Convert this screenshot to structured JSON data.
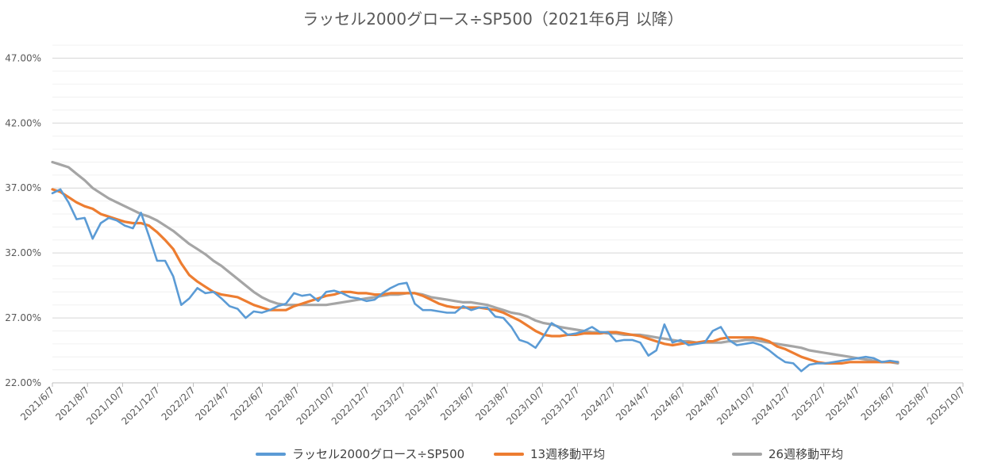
{
  "chart_data": {
    "type": "line",
    "title": "ラッセル2000グロース÷SP500（2021年6月 以降）",
    "y_unit": "percent",
    "ylim": [
      22,
      48
    ],
    "yticks": [
      "22.00%",
      "27.00%",
      "32.00%",
      "37.00%",
      "42.00%",
      "47.00%"
    ],
    "ytick_values": [
      22,
      27,
      32,
      37,
      42,
      47
    ],
    "minor_grid_step": 1,
    "grid": true,
    "legend_position": "bottom",
    "x_range": [
      "2021-06-07",
      "2025-10-07"
    ],
    "xticks": [
      "2021/6/7",
      "2021/8/7",
      "2021/10/7",
      "2021/12/7",
      "2022/2/7",
      "2022/4/7",
      "2022/6/7",
      "2022/8/7",
      "2022/10/7",
      "2022/12/7",
      "2023/2/7",
      "2023/4/7",
      "2023/6/7",
      "2023/8/7",
      "2023/10/7",
      "2023/12/7",
      "2024/2/7",
      "2024/4/7",
      "2024/6/7",
      "2024/8/7",
      "2024/10/7",
      "2024/12/7",
      "2025/2/7",
      "2025/4/7",
      "2025/6/7",
      "2025/8/7",
      "2025/10/7"
    ],
    "series": [
      {
        "name": "ラッセル2000グロース÷SP500",
        "color": "#5B9BD5",
        "x": [
          "2021-06-07",
          "2021-06-21",
          "2021-07-05",
          "2021-07-19",
          "2021-08-02",
          "2021-08-16",
          "2021-08-30",
          "2021-09-13",
          "2021-09-27",
          "2021-10-11",
          "2021-10-25",
          "2021-11-08",
          "2021-11-22",
          "2021-12-06",
          "2021-12-20",
          "2022-01-03",
          "2022-01-17",
          "2022-01-31",
          "2022-02-14",
          "2022-02-28",
          "2022-03-14",
          "2022-03-28",
          "2022-04-11",
          "2022-04-25",
          "2022-05-09",
          "2022-05-23",
          "2022-06-06",
          "2022-06-20",
          "2022-07-04",
          "2022-07-18",
          "2022-08-01",
          "2022-08-15",
          "2022-08-29",
          "2022-09-12",
          "2022-09-26",
          "2022-10-10",
          "2022-10-24",
          "2022-11-07",
          "2022-11-21",
          "2022-12-05",
          "2022-12-19",
          "2023-01-02",
          "2023-01-16",
          "2023-01-30",
          "2023-02-13",
          "2023-02-27",
          "2023-03-13",
          "2023-03-27",
          "2023-04-10",
          "2023-04-24",
          "2023-05-08",
          "2023-05-22",
          "2023-06-05",
          "2023-06-19",
          "2023-07-03",
          "2023-07-17",
          "2023-07-31",
          "2023-08-14",
          "2023-08-28",
          "2023-09-11",
          "2023-09-25",
          "2023-10-09",
          "2023-10-23",
          "2023-11-06",
          "2023-11-20",
          "2023-12-04",
          "2023-12-18",
          "2024-01-01",
          "2024-01-15",
          "2024-01-29",
          "2024-02-12",
          "2024-02-26",
          "2024-03-11",
          "2024-03-25",
          "2024-04-08",
          "2024-04-22",
          "2024-05-06",
          "2024-05-20",
          "2024-06-03",
          "2024-06-17",
          "2024-07-01",
          "2024-07-15",
          "2024-07-29",
          "2024-08-12",
          "2024-08-26",
          "2024-09-09",
          "2024-09-23",
          "2024-10-07",
          "2024-10-21",
          "2024-11-04",
          "2024-11-18",
          "2024-12-02",
          "2024-12-16",
          "2024-12-30",
          "2025-01-13",
          "2025-01-27",
          "2025-02-10",
          "2025-02-24",
          "2025-03-10",
          "2025-03-24",
          "2025-04-07",
          "2025-04-21",
          "2025-05-05",
          "2025-05-19",
          "2025-06-02",
          "2025-06-16"
        ],
        "values": [
          36.6,
          36.9,
          35.9,
          34.6,
          34.7,
          33.1,
          34.3,
          34.7,
          34.5,
          34.1,
          33.9,
          35.1,
          33.3,
          31.4,
          31.4,
          30.2,
          28.0,
          28.5,
          29.3,
          28.9,
          29.0,
          28.5,
          27.9,
          27.7,
          27.0,
          27.5,
          27.4,
          27.6,
          27.9,
          28.1,
          28.9,
          28.7,
          28.8,
          28.3,
          29.0,
          29.1,
          28.9,
          28.6,
          28.5,
          28.3,
          28.4,
          28.9,
          29.3,
          29.6,
          29.7,
          28.1,
          27.6,
          27.6,
          27.5,
          27.4,
          27.4,
          27.9,
          27.6,
          27.8,
          27.8,
          27.1,
          27.0,
          26.3,
          25.3,
          25.1,
          24.7,
          25.6,
          26.6,
          26.2,
          25.7,
          25.8,
          26.0,
          26.3,
          25.9,
          25.9,
          25.2,
          25.3,
          25.3,
          25.1,
          24.1,
          24.5,
          26.5,
          25.1,
          25.3,
          24.9,
          25.0,
          25.1,
          26.0,
          26.3,
          25.3,
          24.9,
          25.0,
          25.1,
          24.9,
          24.5,
          24.0,
          23.6,
          23.5,
          22.9,
          23.4,
          23.5,
          23.5,
          23.6,
          23.7,
          23.8,
          23.9,
          24.0,
          23.9,
          23.6,
          23.7,
          23.6
        ],
        "values_note": ""
      },
      {
        "name": "13週移動平均",
        "color": "#ED7D31",
        "x": [
          "2021-06-07",
          "2021-06-21",
          "2021-07-05",
          "2021-07-19",
          "2021-08-02",
          "2021-08-16",
          "2021-08-30",
          "2021-09-13",
          "2021-09-27",
          "2021-10-11",
          "2021-10-25",
          "2021-11-08",
          "2021-11-22",
          "2021-12-06",
          "2021-12-20",
          "2022-01-03",
          "2022-01-17",
          "2022-01-31",
          "2022-02-14",
          "2022-02-28",
          "2022-03-14",
          "2022-03-28",
          "2022-04-11",
          "2022-04-25",
          "2022-05-09",
          "2022-05-23",
          "2022-06-06",
          "2022-06-20",
          "2022-07-04",
          "2022-07-18",
          "2022-08-01",
          "2022-08-15",
          "2022-08-29",
          "2022-09-12",
          "2022-09-26",
          "2022-10-10",
          "2022-10-24",
          "2022-11-07",
          "2022-11-21",
          "2022-12-05",
          "2022-12-19",
          "2023-01-02",
          "2023-01-16",
          "2023-01-30",
          "2023-02-13",
          "2023-02-27",
          "2023-03-13",
          "2023-03-27",
          "2023-04-10",
          "2023-04-24",
          "2023-05-08",
          "2023-05-22",
          "2023-06-05",
          "2023-06-19",
          "2023-07-03",
          "2023-07-17",
          "2023-07-31",
          "2023-08-14",
          "2023-08-28",
          "2023-09-11",
          "2023-09-25",
          "2023-10-09",
          "2023-10-23",
          "2023-11-06",
          "2023-11-20",
          "2023-12-04",
          "2023-12-18",
          "2024-01-01",
          "2024-01-15",
          "2024-01-29",
          "2024-02-12",
          "2024-02-26",
          "2024-03-11",
          "2024-03-25",
          "2024-04-08",
          "2024-04-22",
          "2024-05-06",
          "2024-05-20",
          "2024-06-03",
          "2024-06-17",
          "2024-07-01",
          "2024-07-15",
          "2024-07-29",
          "2024-08-12",
          "2024-08-26",
          "2024-09-09",
          "2024-09-23",
          "2024-10-07",
          "2024-10-21",
          "2024-11-04",
          "2024-11-18",
          "2024-12-02",
          "2024-12-16",
          "2024-12-30",
          "2025-01-13",
          "2025-01-27",
          "2025-02-10",
          "2025-02-24",
          "2025-03-10",
          "2025-03-24",
          "2025-04-07",
          "2025-04-21",
          "2025-05-05",
          "2025-05-19",
          "2025-06-02",
          "2025-06-16"
        ],
        "values": [
          36.9,
          36.7,
          36.3,
          35.9,
          35.6,
          35.4,
          35.0,
          34.8,
          34.6,
          34.4,
          34.3,
          34.3,
          34.1,
          33.6,
          33.0,
          32.3,
          31.2,
          30.3,
          29.8,
          29.4,
          29.0,
          28.8,
          28.7,
          28.6,
          28.3,
          28.0,
          27.8,
          27.6,
          27.6,
          27.6,
          27.9,
          28.1,
          28.3,
          28.5,
          28.7,
          28.8,
          29.0,
          29.0,
          28.9,
          28.9,
          28.8,
          28.8,
          28.9,
          28.9,
          28.9,
          28.9,
          28.7,
          28.4,
          28.1,
          27.9,
          27.8,
          27.8,
          27.8,
          27.8,
          27.7,
          27.6,
          27.4,
          27.1,
          26.8,
          26.4,
          26.0,
          25.7,
          25.6,
          25.6,
          25.7,
          25.7,
          25.8,
          25.8,
          25.8,
          25.9,
          25.9,
          25.8,
          25.7,
          25.6,
          25.4,
          25.2,
          25.0,
          24.9,
          25.0,
          25.1,
          25.1,
          25.2,
          25.2,
          25.4,
          25.5,
          25.5,
          25.5,
          25.5,
          25.4,
          25.2,
          24.8,
          24.6,
          24.3,
          24.0,
          23.8,
          23.6,
          23.5,
          23.5,
          23.5,
          23.6,
          23.6,
          23.6,
          23.6,
          23.6,
          23.6,
          23.6
        ],
        "values_note": ""
      },
      {
        "name": "26週移動平均",
        "color": "#A5A5A5",
        "x": [
          "2021-06-07",
          "2021-06-21",
          "2021-07-05",
          "2021-07-19",
          "2021-08-02",
          "2021-08-16",
          "2021-08-30",
          "2021-09-13",
          "2021-09-27",
          "2021-10-11",
          "2021-10-25",
          "2021-11-08",
          "2021-11-22",
          "2021-12-06",
          "2021-12-20",
          "2022-01-03",
          "2022-01-17",
          "2022-01-31",
          "2022-02-14",
          "2022-02-28",
          "2022-03-14",
          "2022-03-28",
          "2022-04-11",
          "2022-04-25",
          "2022-05-09",
          "2022-05-23",
          "2022-06-06",
          "2022-06-20",
          "2022-07-04",
          "2022-07-18",
          "2022-08-01",
          "2022-08-15",
          "2022-08-29",
          "2022-09-12",
          "2022-09-26",
          "2022-10-10",
          "2022-10-24",
          "2022-11-07",
          "2022-11-21",
          "2022-12-05",
          "2022-12-19",
          "2023-01-02",
          "2023-01-16",
          "2023-01-30",
          "2023-02-13",
          "2023-02-27",
          "2023-03-13",
          "2023-03-27",
          "2023-04-10",
          "2023-04-24",
          "2023-05-08",
          "2023-05-22",
          "2023-06-05",
          "2023-06-19",
          "2023-07-03",
          "2023-07-17",
          "2023-07-31",
          "2023-08-14",
          "2023-08-28",
          "2023-09-11",
          "2023-09-25",
          "2023-10-09",
          "2023-10-23",
          "2023-11-06",
          "2023-11-20",
          "2023-12-04",
          "2023-12-18",
          "2024-01-01",
          "2024-01-15",
          "2024-01-29",
          "2024-02-12",
          "2024-02-26",
          "2024-03-11",
          "2024-03-25",
          "2024-04-08",
          "2024-04-22",
          "2024-05-06",
          "2024-05-20",
          "2024-06-03",
          "2024-06-17",
          "2024-07-01",
          "2024-07-15",
          "2024-07-29",
          "2024-08-12",
          "2024-08-26",
          "2024-09-09",
          "2024-09-23",
          "2024-10-07",
          "2024-10-21",
          "2024-11-04",
          "2024-11-18",
          "2024-12-02",
          "2024-12-16",
          "2024-12-30",
          "2025-01-13",
          "2025-01-27",
          "2025-02-10",
          "2025-02-24",
          "2025-03-10",
          "2025-03-24",
          "2025-04-07",
          "2025-04-21",
          "2025-05-05",
          "2025-05-19",
          "2025-06-02",
          "2025-06-16"
        ],
        "values": [
          39.0,
          38.8,
          38.6,
          38.1,
          37.6,
          37.0,
          36.6,
          36.2,
          35.9,
          35.6,
          35.3,
          35.0,
          34.8,
          34.5,
          34.1,
          33.7,
          33.2,
          32.7,
          32.3,
          31.9,
          31.4,
          31.0,
          30.5,
          30.0,
          29.5,
          29.0,
          28.6,
          28.3,
          28.1,
          28.0,
          28.0,
          28.0,
          28.0,
          28.0,
          28.0,
          28.1,
          28.2,
          28.3,
          28.4,
          28.5,
          28.6,
          28.7,
          28.8,
          28.8,
          28.9,
          28.9,
          28.8,
          28.6,
          28.5,
          28.4,
          28.3,
          28.2,
          28.2,
          28.1,
          28.0,
          27.8,
          27.6,
          27.4,
          27.3,
          27.1,
          26.8,
          26.6,
          26.5,
          26.3,
          26.2,
          26.1,
          26.0,
          25.9,
          25.9,
          25.8,
          25.8,
          25.7,
          25.7,
          25.7,
          25.6,
          25.5,
          25.4,
          25.3,
          25.2,
          25.2,
          25.1,
          25.1,
          25.1,
          25.1,
          25.2,
          25.2,
          25.3,
          25.3,
          25.2,
          25.1,
          25.0,
          24.9,
          24.8,
          24.7,
          24.5,
          24.4,
          24.3,
          24.2,
          24.1,
          24.0,
          23.9,
          23.8,
          23.7,
          23.6,
          23.6,
          23.5
        ],
        "values_note": ""
      }
    ]
  }
}
